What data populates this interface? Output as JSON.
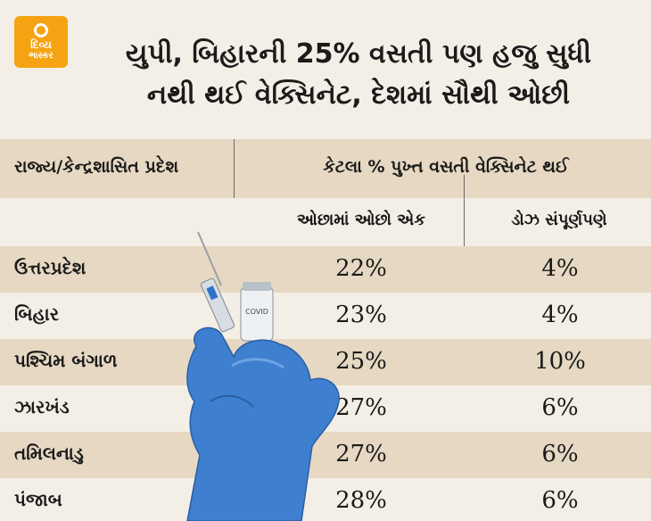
{
  "logo": {
    "line1": "દિવ્ય",
    "line2": "ભાસ્કર"
  },
  "title": {
    "line1": "યુપી, બિહારની 25% વસતી પણ હજુ સુધી",
    "line2": "નથી થઈ વેક્સિનેટ, દેશમાં સૌથી ઓછી"
  },
  "table": {
    "header_state": "રાજ્ય/કેન્દ્રશાસિત પ્રદેશ",
    "header_group": "કેટલા % પુખ્ત વસતી વેક્સિનેટ થઈ",
    "sub_first": "ઓછામાં ઓછો એક",
    "sub_second": "ડોઝ સંપૂર્ણપણે",
    "rows": [
      {
        "state": "ઉત્તરપ્રદેશ",
        "at_least_one": "22%",
        "full": "4%"
      },
      {
        "state": "બિહાર",
        "at_least_one": "23%",
        "full": "4%"
      },
      {
        "state": "પશ્ચિમ બંગાળ",
        "at_least_one": "25%",
        "full": "10%"
      },
      {
        "state": "ઝારખંડ",
        "at_least_one": "27%",
        "full": "6%"
      },
      {
        "state": "તમિલનાડુ",
        "at_least_one": "27%",
        "full": "6%"
      },
      {
        "state": "પંજાબ",
        "at_least_one": "28%",
        "full": "6%"
      }
    ]
  },
  "vial_label": "COVID",
  "colors": {
    "background": "#f4efe6",
    "shade": "#e6d8c2",
    "logo": "#f6a313",
    "glove": "#3f7fd0"
  }
}
